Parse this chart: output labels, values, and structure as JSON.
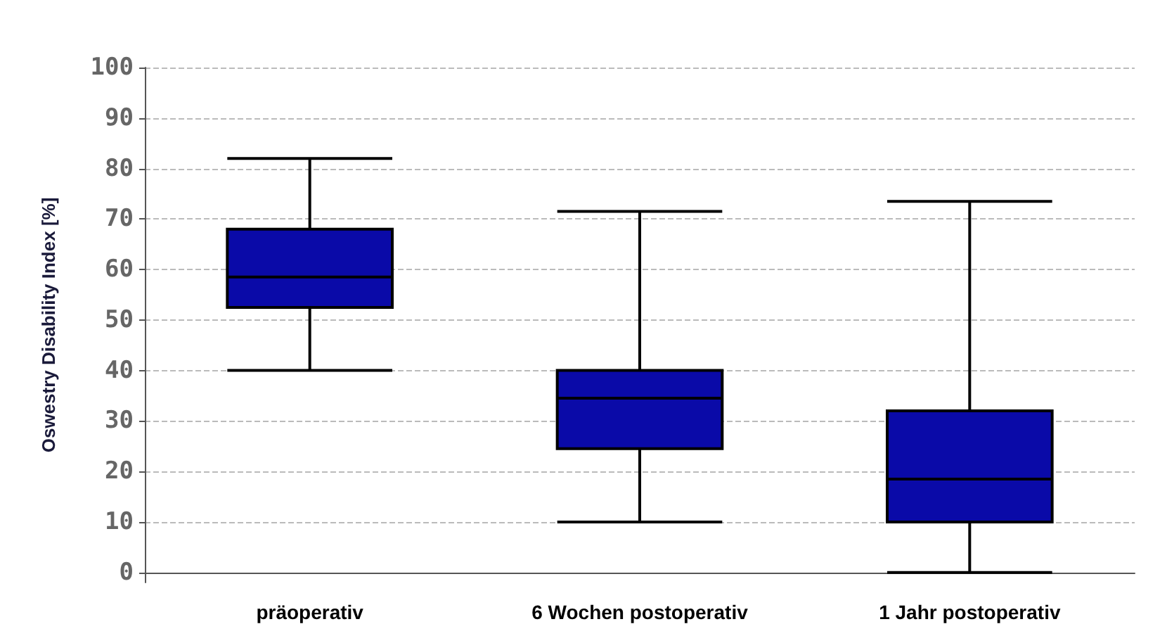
{
  "chart_data": {
    "type": "box",
    "ylabel": "Oswestry Disability Index [%]",
    "categories": [
      "präoperativ",
      "6 Wochen postoperativ",
      "1 Jahr postoperativ"
    ],
    "series": [
      {
        "color": "#0a0aa8",
        "boxes": [
          {
            "low": 40,
            "q1": 52.5,
            "median": 58.5,
            "q3": 68,
            "high": 82
          },
          {
            "low": 10,
            "q1": 24.5,
            "median": 34.5,
            "q3": 40,
            "high": 71.5
          },
          {
            "low": 0,
            "q1": 10,
            "median": 18.5,
            "q3": 32,
            "high": 73.5
          }
        ]
      }
    ],
    "ylim": [
      -2,
      100
    ],
    "yticks": [
      0,
      10,
      20,
      30,
      40,
      50,
      60,
      70,
      80,
      90,
      100
    ],
    "grid": "y"
  }
}
